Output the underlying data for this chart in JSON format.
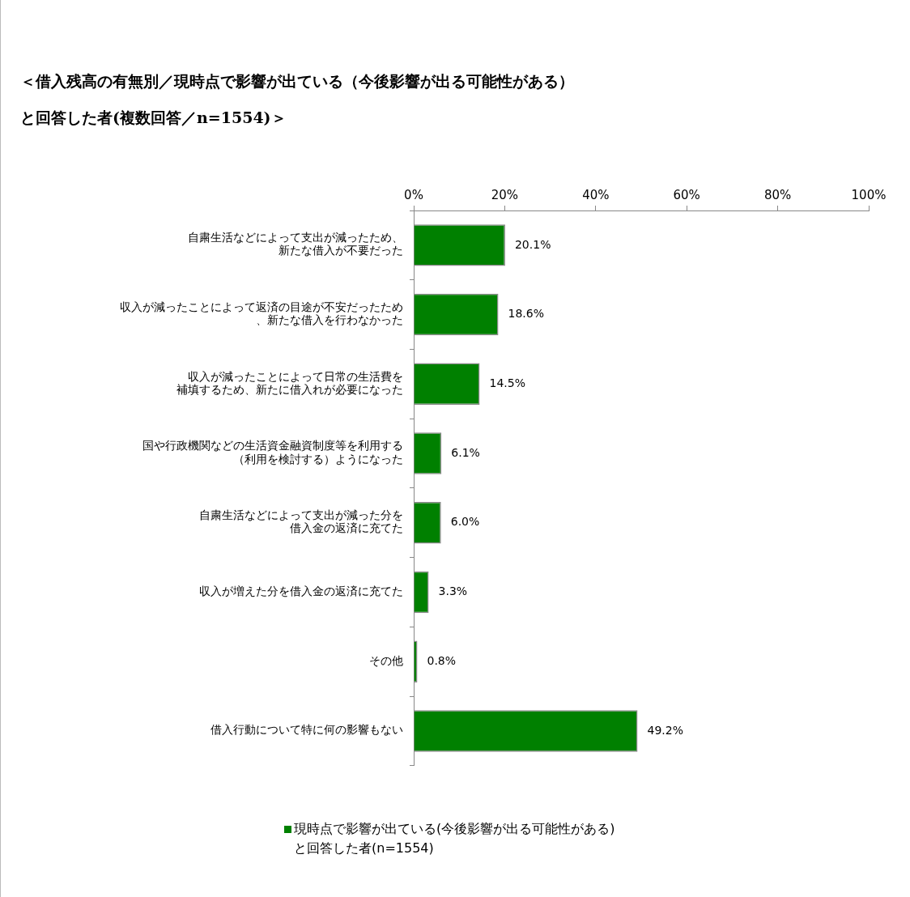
{
  "chart_data": {
    "type": "bar",
    "orientation": "horizontal",
    "title": "＜借入残高の有無別／現時点で影響が出ている（今後影響が出る可能性がある）と回答した者(複数回答／n=1554)＞",
    "categories": [
      "自粛生活などによって支出が減ったため、新たな借入が不要だった",
      "収入が減ったことによって返済の目途が不安だったため、新たな借入を行わなかった",
      "収入が減ったことによって日常の生活費を補填するため、新たに借入れが必要になった",
      "国や行政機関などの生活資金融資制度等を利用する（利用を検討する）ようになった",
      "自粛生活などによって支出が減った分を借入金の返済に充てた",
      "収入が増えた分を借入金の返済に充てた",
      "その他",
      "借入行動について特に何の影響もない"
    ],
    "series": [
      {
        "name": "現時点で影響が出ている(今後影響が出る可能性がある)と回答した者(n=1554)",
        "color": "#008000",
        "values": [
          20.1,
          18.6,
          14.5,
          6.1,
          6.0,
          3.3,
          0.8,
          49.2
        ],
        "value_labels": [
          "20.1%",
          "18.6%",
          "14.5%",
          "6.1%",
          "6.0%",
          "3.3%",
          "0.8%",
          "49.2%"
        ]
      }
    ],
    "xlim": [
      0,
      100
    ],
    "xticks": [
      {
        "value": 0,
        "label": "0%"
      },
      {
        "value": 20,
        "label": "20%"
      },
      {
        "value": 40,
        "label": "40%"
      },
      {
        "value": 60,
        "label": "60%"
      },
      {
        "value": 80,
        "label": "80%"
      },
      {
        "value": 100,
        "label": "100%"
      }
    ],
    "grid": false,
    "legend": "bottom"
  }
}
